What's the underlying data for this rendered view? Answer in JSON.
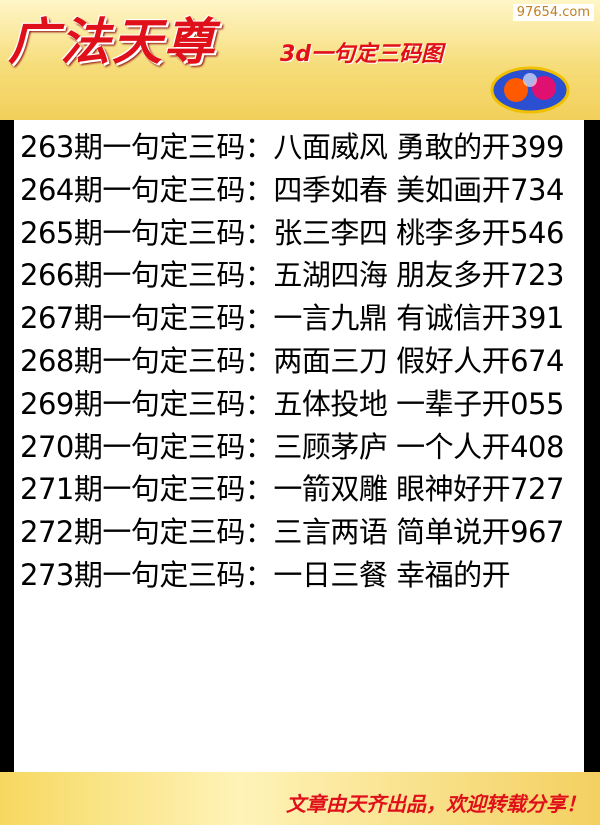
{
  "header": {
    "title": "广法天尊",
    "subtitle": "3d一句定三码图",
    "watermark": "97654.com"
  },
  "lines": [
    "263期一句定三码：八面威风 勇敢的开399",
    "264期一句定三码：四季如春 美如画开734",
    "265期一句定三码：张三李四 桃李多开546",
    "266期一句定三码：五湖四海 朋友多开723",
    "267期一句定三码：一言九鼎 有诚信开391",
    "268期一句定三码：两面三刀 假好人开674",
    "269期一句定三码：五体投地 一辈子开055",
    "270期一句定三码：三顾茅庐 一个人开408",
    "271期一句定三码：一箭双雕 眼神好开727",
    "272期一句定三码：三言两语 简单说开967",
    "273期一句定三码：一日三餐 幸福的开"
  ],
  "footer": "文章由天齐出品，欢迎转载分享！"
}
